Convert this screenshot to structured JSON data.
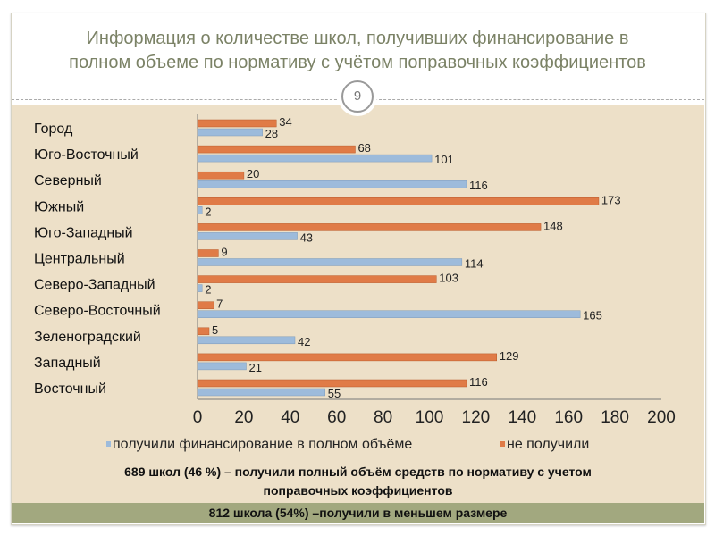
{
  "slide": {
    "title_line1": "Информация о количестве школ, получивших финансирование в",
    "title_line2": "полном объеме по нормативу с учётом поправочных коэффициентов",
    "page_number": "9",
    "note_line1": "689 школ (46 %) – получили полный объём средств по нормативу с учетом",
    "note_line2": "поправочных коэффициентов",
    "footer": "812 школа (54%) –получили в меньшем размере"
  },
  "chart_data": {
    "type": "bar",
    "orientation": "horizontal",
    "categories": [
      "Город",
      "Юго-Восточный",
      "Северный",
      "Южный",
      "Юго-Западный",
      "Центральный",
      "Северо-Западный",
      "Северо-Восточный",
      "Зеленоградский",
      "Западный",
      "Восточный"
    ],
    "series": [
      {
        "name": "получили финансирование в полном объёме",
        "color": "#9dbbdb",
        "values": [
          28,
          101,
          116,
          2,
          43,
          114,
          2,
          165,
          42,
          21,
          55
        ]
      },
      {
        "name": "не получили",
        "color": "#e07b47",
        "values": [
          34,
          68,
          20,
          173,
          148,
          9,
          103,
          7,
          5,
          129,
          116
        ]
      }
    ],
    "xlim": [
      0,
      200
    ],
    "xticks": [
      0,
      20,
      40,
      60,
      80,
      100,
      120,
      140,
      160,
      180,
      200
    ],
    "legend": "bottom",
    "grid": false
  }
}
